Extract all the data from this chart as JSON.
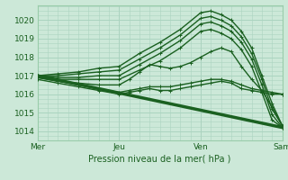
{
  "xlabel": "Pression niveau de la mer( hPa )",
  "bg_color": "#cce8d8",
  "grid_minor_color": "#aad4c0",
  "grid_major_color": "#aad4c0",
  "line_color": "#1a6020",
  "day_line_color": "#cc9999",
  "xlim": [
    0,
    72
  ],
  "ylim": [
    1013.5,
    1020.8
  ],
  "yticks": [
    1014,
    1015,
    1016,
    1017,
    1018,
    1019,
    1020
  ],
  "xtick_positions": [
    0,
    24,
    48,
    72
  ],
  "xtick_labels": [
    "Mer",
    "Jeu",
    "Ven",
    "Sam"
  ],
  "series": [
    {
      "x": [
        0,
        6,
        12,
        18,
        24,
        30,
        36,
        42,
        48,
        51,
        54,
        57,
        60,
        63,
        66,
        69,
        72
      ],
      "y": [
        1017.0,
        1017.1,
        1017.2,
        1017.4,
        1017.5,
        1018.2,
        1018.8,
        1019.5,
        1020.4,
        1020.5,
        1020.3,
        1020.0,
        1019.4,
        1018.5,
        1017.0,
        1015.5,
        1014.3
      ],
      "lw": 1.0,
      "marker": "+"
    },
    {
      "x": [
        0,
        6,
        12,
        18,
        24,
        30,
        36,
        42,
        48,
        51,
        54,
        57,
        60,
        63,
        66,
        69,
        72
      ],
      "y": [
        1017.0,
        1017.0,
        1017.1,
        1017.2,
        1017.3,
        1017.9,
        1018.5,
        1019.2,
        1020.1,
        1020.2,
        1020.0,
        1019.7,
        1019.1,
        1018.2,
        1016.8,
        1015.2,
        1014.3
      ],
      "lw": 1.0,
      "marker": "+"
    },
    {
      "x": [
        0,
        6,
        12,
        18,
        24,
        30,
        36,
        42,
        48,
        51,
        54,
        57,
        60,
        63,
        66,
        69,
        72
      ],
      "y": [
        1017.0,
        1016.9,
        1016.9,
        1017.0,
        1017.0,
        1017.6,
        1018.2,
        1018.9,
        1019.8,
        1019.9,
        1019.7,
        1019.4,
        1018.8,
        1017.9,
        1016.5,
        1014.9,
        1014.2
      ],
      "lw": 1.0,
      "marker": "+"
    },
    {
      "x": [
        0,
        6,
        12,
        18,
        24,
        30,
        36,
        42,
        48,
        51,
        54,
        57,
        60,
        63,
        66,
        69,
        72
      ],
      "y": [
        1016.9,
        1016.8,
        1016.8,
        1016.8,
        1016.8,
        1017.3,
        1017.8,
        1018.5,
        1019.4,
        1019.5,
        1019.3,
        1019.0,
        1018.4,
        1017.5,
        1016.1,
        1014.6,
        1014.2
      ],
      "lw": 1.0,
      "marker": "+"
    },
    {
      "x": [
        0,
        6,
        12,
        18,
        24,
        27,
        30,
        33,
        36,
        39,
        42,
        45,
        48,
        51,
        54,
        57,
        60,
        63,
        66,
        69,
        72
      ],
      "y": [
        1016.9,
        1016.7,
        1016.6,
        1016.5,
        1016.5,
        1016.8,
        1017.2,
        1017.6,
        1017.5,
        1017.4,
        1017.5,
        1017.7,
        1018.0,
        1018.3,
        1018.5,
        1018.3,
        1017.5,
        1016.8,
        1016.2,
        1015.3,
        1014.3
      ],
      "lw": 1.0,
      "marker": "+"
    },
    {
      "x": [
        0,
        6,
        12,
        18,
        24,
        27,
        30,
        33,
        36,
        39,
        42,
        45,
        48,
        51,
        54,
        57,
        60,
        63,
        66,
        69,
        72
      ],
      "y": [
        1016.8,
        1016.6,
        1016.4,
        1016.2,
        1016.0,
        1016.1,
        1016.2,
        1016.3,
        1016.2,
        1016.2,
        1016.3,
        1016.4,
        1016.5,
        1016.6,
        1016.7,
        1016.6,
        1016.3,
        1016.2,
        1016.1,
        1016.0,
        1016.0
      ],
      "lw": 1.0,
      "marker": "+"
    },
    {
      "x": [
        0,
        6,
        12,
        18,
        24,
        27,
        30,
        33,
        36,
        39,
        42,
        45,
        48,
        51,
        54,
        57,
        60,
        63,
        66,
        69,
        72
      ],
      "y": [
        1016.9,
        1016.7,
        1016.5,
        1016.3,
        1016.1,
        1016.2,
        1016.3,
        1016.4,
        1016.4,
        1016.4,
        1016.5,
        1016.6,
        1016.7,
        1016.8,
        1016.8,
        1016.7,
        1016.5,
        1016.3,
        1016.2,
        1016.1,
        1016.0
      ],
      "lw": 1.0,
      "marker": "+"
    },
    {
      "x": [
        0,
        72
      ],
      "y": [
        1017.0,
        1014.2
      ],
      "lw": 2.5,
      "marker": null
    }
  ]
}
